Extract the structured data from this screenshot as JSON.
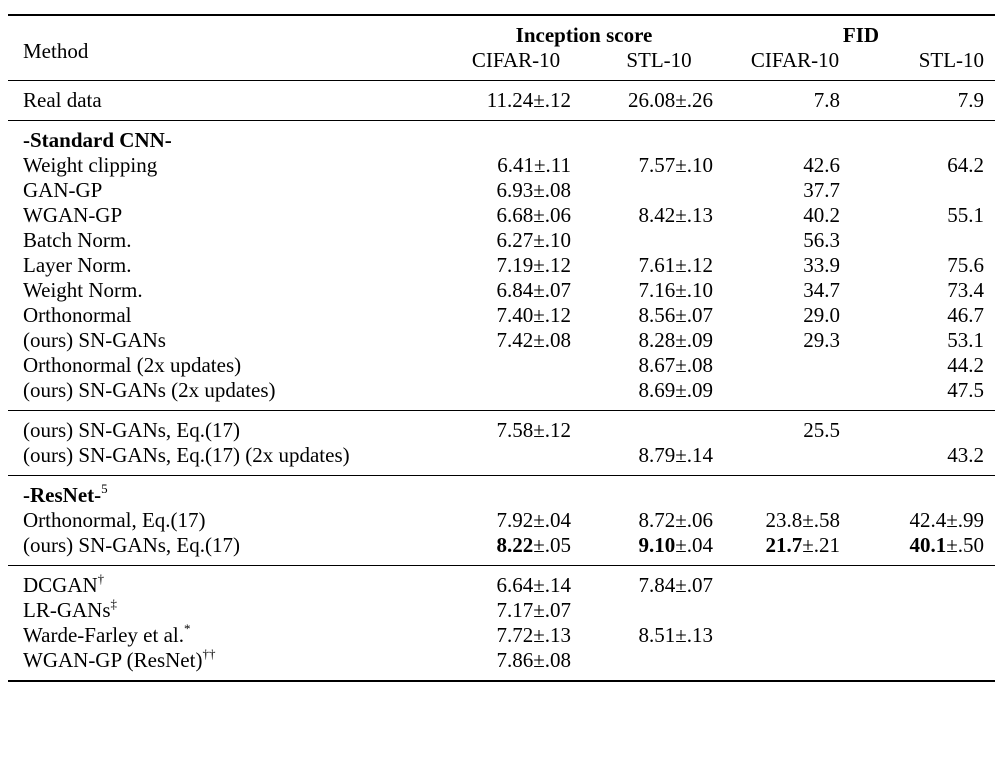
{
  "header": {
    "method": "Method",
    "inception": "Inception score",
    "fid": "FID",
    "cifar_is": "CIFAR-10",
    "stl_is": "STL-10",
    "cifar_fid": "CIFAR-10",
    "stl_fid": "STL-10"
  },
  "real": {
    "method": "Real data",
    "is_cifar": "11.24±.12",
    "is_stl": "26.08±.26",
    "fid_cifar": "7.8",
    "fid_stl": "7.9"
  },
  "cnn": {
    "title": "-Standard CNN-",
    "rows": [
      {
        "method": "Weight clipping",
        "is_cifar": "6.41±.11",
        "is_stl": "7.57±.10",
        "fid_cifar": "42.6",
        "fid_stl": "64.2"
      },
      {
        "method": "GAN-GP",
        "is_cifar": "6.93±.08",
        "is_stl": "",
        "fid_cifar": "37.7",
        "fid_stl": ""
      },
      {
        "method": "WGAN-GP",
        "is_cifar": "6.68±.06",
        "is_stl": "8.42±.13",
        "fid_cifar": "40.2",
        "fid_stl": "55.1"
      },
      {
        "method": "Batch Norm.",
        "is_cifar": "6.27±.10",
        "is_stl": "",
        "fid_cifar": "56.3",
        "fid_stl": ""
      },
      {
        "method": "Layer Norm.",
        "is_cifar": "7.19±.12",
        "is_stl": "7.61±.12",
        "fid_cifar": "33.9",
        "fid_stl": "75.6"
      },
      {
        "method": "Weight Norm.",
        "is_cifar": "6.84±.07",
        "is_stl": "7.16±.10",
        "fid_cifar": "34.7",
        "fid_stl": "73.4"
      },
      {
        "method": "Orthonormal",
        "is_cifar": "7.40±.12",
        "is_stl": "8.56±.07",
        "fid_cifar": "29.0",
        "fid_stl": "46.7"
      },
      {
        "method": "(ours) SN-GANs",
        "is_cifar": "7.42±.08",
        "is_stl": "8.28±.09",
        "fid_cifar": "29.3",
        "fid_stl": "53.1"
      },
      {
        "method": "Orthonormal (2x updates)",
        "is_cifar": "",
        "is_stl": "8.67±.08",
        "fid_cifar": "",
        "fid_stl": "44.2"
      },
      {
        "method": "(ours) SN-GANs (2x updates)",
        "is_cifar": "",
        "is_stl": "8.69±.09",
        "fid_cifar": "",
        "fid_stl": "47.5"
      }
    ]
  },
  "eq17": {
    "rows": [
      {
        "method": "(ours) SN-GANs, Eq.(17)",
        "is_cifar": "7.58±.12",
        "is_stl": "",
        "fid_cifar": "25.5",
        "fid_stl": ""
      },
      {
        "method": "(ours) SN-GANs, Eq.(17) (2x updates)",
        "is_cifar": "",
        "is_stl": "8.79±.14",
        "fid_cifar": "",
        "fid_stl": "43.2"
      }
    ]
  },
  "resnet": {
    "title": "-ResNet-",
    "title_sup": "5",
    "orth": {
      "method": "Orthonormal, Eq.(17)",
      "is_cifar": "7.92±.04",
      "is_stl": "8.72±.06",
      "fid_cifar": "23.8±.58",
      "fid_stl": "42.4±.99"
    },
    "ours": {
      "method": "(ours) SN-GANs, Eq.(17)",
      "is_cifar_b": "8.22",
      "is_cifar_r": "±.05",
      "is_stl_b": "9.10",
      "is_stl_r": "±.04",
      "fid_cifar_b": "21.7",
      "fid_cifar_r": "±.21",
      "fid_stl_b": "40.1",
      "fid_stl_r": "±.50"
    }
  },
  "prior": {
    "rows": [
      {
        "method": "DCGAN",
        "sup": "†",
        "is_cifar": "6.64±.14",
        "is_stl": "7.84±.07"
      },
      {
        "method": "LR-GANs",
        "sup": "‡",
        "is_cifar": "7.17±.07",
        "is_stl": ""
      },
      {
        "method": "Warde-Farley et al.",
        "sup": "*",
        "is_cifar": "7.72±.13",
        "is_stl": "8.51±.13"
      },
      {
        "method": "WGAN-GP (ResNet)",
        "sup": "††",
        "is_cifar": "7.86±.08",
        "is_stl": ""
      }
    ]
  }
}
